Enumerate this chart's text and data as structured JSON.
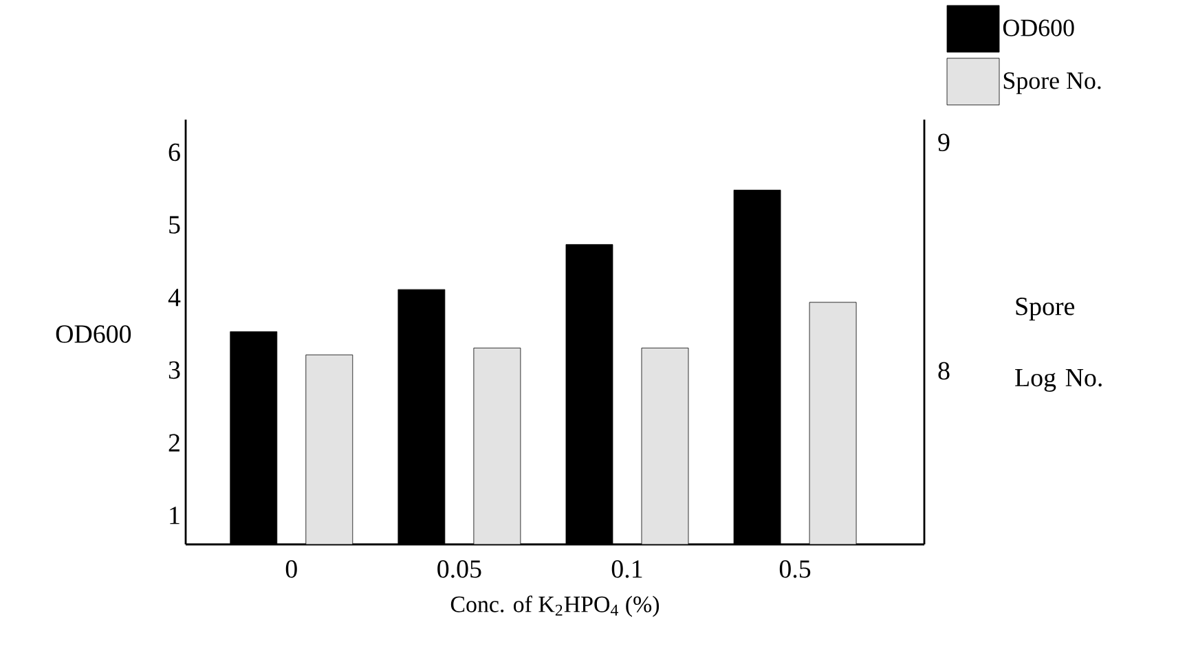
{
  "chart_data": {
    "type": "bar",
    "categories": [
      "0",
      "0.05",
      "0.1",
      "0.5"
    ],
    "series": [
      {
        "name": "OD600",
        "color": "#000000",
        "values": [
          3.53,
          4.11,
          4.73,
          5.48
        ]
      },
      {
        "name": "Spore No.",
        "color": "#e3e3e3",
        "axis": "y2",
        "values": [
          8.07,
          8.1,
          8.1,
          8.3
        ]
      }
    ],
    "xlabel": "Conc. of K$_{2}$HPO$_{4}$ (%)",
    "ylabel": "OD600",
    "y2label": "Spore Log No.",
    "ylim": [
      0.6,
      6.45
    ],
    "yticks": [
      1,
      2,
      3,
      4,
      5,
      6
    ],
    "y2lim": [
      7.24,
      9.1
    ],
    "y2ticks": [
      8,
      9
    ],
    "legend": "top right",
    "grid": false
  }
}
